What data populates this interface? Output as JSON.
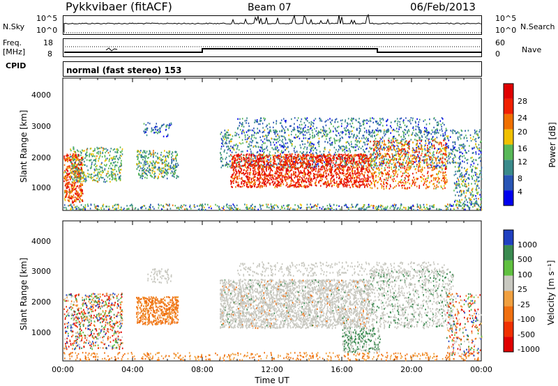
{
  "header": {
    "title": "Pykkvibaer (fitACF)",
    "beam": "Beam 07",
    "date": "06/Feb/2013"
  },
  "side_labels": {
    "nsky": "N.Sky",
    "nsearch": "N.Search",
    "freq": "Freq.",
    "freq_unit": "[MHz]",
    "nave": "Nave",
    "cpid": "CPID"
  },
  "noise_axis": {
    "left_top": "10^5",
    "left_bottom": "10^0",
    "right_top": "10^5",
    "right_bottom": "10^0"
  },
  "freq_axis": {
    "left_ticks": [
      "18",
      "8"
    ],
    "right_ticks": [
      "60",
      "0"
    ]
  },
  "cpid_text": "normal (fast stereo) 153",
  "chart_data": [
    {
      "type": "heatmap",
      "name": "power",
      "ylabel": "Slant Range [km]",
      "yticks": [
        "1000",
        "2000",
        "3000",
        "4000"
      ],
      "ylim": [
        200,
        4500
      ],
      "xlim": [
        0,
        24
      ],
      "colorbar_label": "Power [dB]",
      "colorbar_ticks": [
        "4",
        "8",
        "12",
        "16",
        "20",
        "24",
        "28"
      ],
      "colorbar_range": [
        0,
        32
      ],
      "colors": [
        "#0000ee",
        "#2855b5",
        "#3a8a8a",
        "#58b858",
        "#f0c000",
        "#f07000",
        "#f02000",
        "#e00000"
      ]
    },
    {
      "type": "heatmap",
      "name": "velocity",
      "ylabel": "Slant Range [km]",
      "yticks": [
        "1000",
        "2000",
        "3000",
        "4000"
      ],
      "ylim": [
        200,
        4500
      ],
      "xlim": [
        0,
        24
      ],
      "xlabel": "Time UT",
      "xticks": [
        "00:00",
        "04:00",
        "08:00",
        "12:00",
        "16:00",
        "20:00",
        "00:00"
      ],
      "colorbar_label": "Velocity [m s⁻¹]",
      "colorbar_ticks": [
        "1000",
        "500",
        "100",
        "25",
        "-25",
        "-100",
        "-500",
        "-1000"
      ],
      "colors": [
        "#2040c0",
        "#3a8a50",
        "#60c040",
        "#c8c8c0",
        "#f0a040",
        "#f07010",
        "#f03000",
        "#e00000"
      ]
    }
  ]
}
